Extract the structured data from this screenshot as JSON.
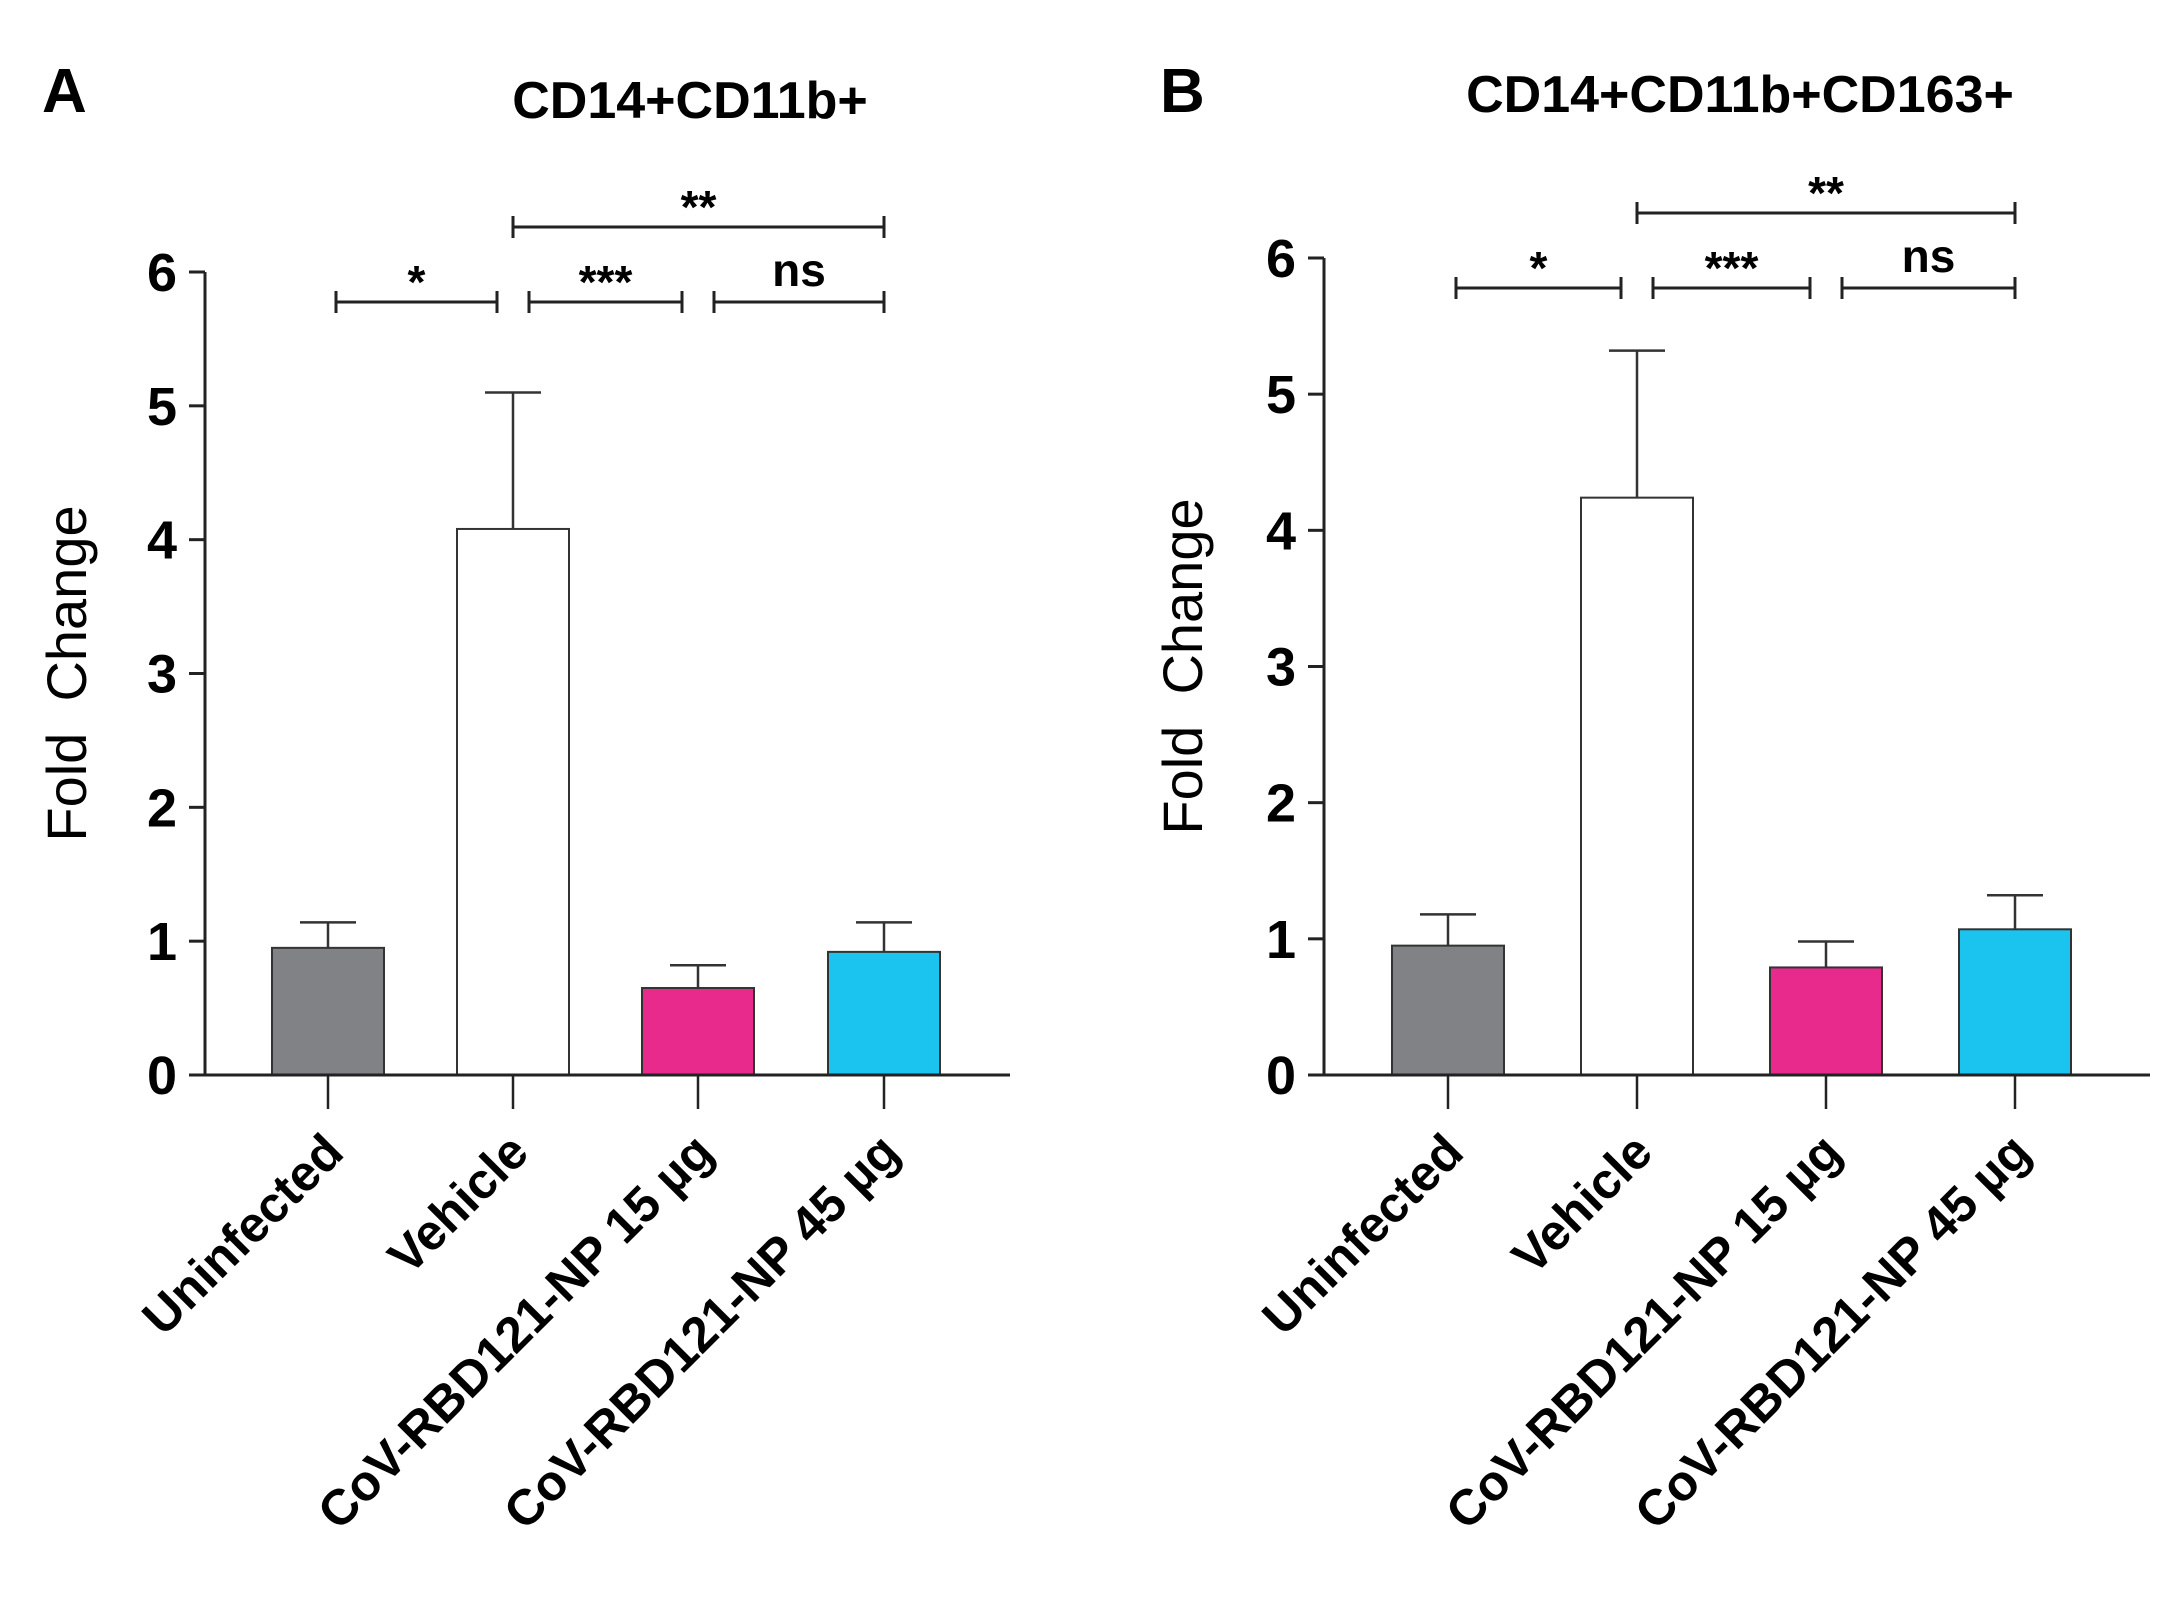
{
  "chart_data": [
    {
      "type": "bar",
      "panel": "A",
      "title": "CD14+CD11b+",
      "xlabel": "",
      "ylabel": "Fold  Change",
      "ylim": [
        0,
        6
      ],
      "yticks": [
        0,
        1,
        2,
        3,
        4,
        5,
        6
      ],
      "categories": [
        "Uninfected",
        "Vehicle",
        "CoV-RBD121-NP 15 µg",
        "CoV-RBD121-NP 45 µg"
      ],
      "values": [
        0.95,
        4.08,
        0.65,
        0.92
      ],
      "errors": [
        0.19,
        1.02,
        0.17,
        0.22
      ],
      "colors": [
        "#808285",
        "#ffffff",
        "#e82a8c",
        "#1ac4ef"
      ],
      "significance": [
        {
          "from": 0,
          "to": 1,
          "label": "*",
          "level": 1
        },
        {
          "from": 1,
          "to": 2,
          "label": "***",
          "level": 1
        },
        {
          "from": 2,
          "to": 3,
          "label": "ns",
          "level": 1
        },
        {
          "from": 1,
          "to": 3,
          "label": "**",
          "level": 2
        }
      ]
    },
    {
      "type": "bar",
      "panel": "B",
      "title": "CD14+CD11b+CD163+",
      "xlabel": "",
      "ylabel": "Fold  Change",
      "ylim": [
        0,
        6
      ],
      "yticks": [
        0,
        1,
        2,
        3,
        4,
        5,
        6
      ],
      "categories": [
        "Uninfected",
        "Vehicle",
        "CoV-RBD121-NP 15 µg",
        "CoV-RBD121-NP 45 µg"
      ],
      "values": [
        0.95,
        4.24,
        0.79,
        1.07
      ],
      "errors": [
        0.23,
        1.08,
        0.19,
        0.25
      ],
      "colors": [
        "#808285",
        "#ffffff",
        "#e82a8c",
        "#1ac4ef"
      ],
      "significance": [
        {
          "from": 0,
          "to": 1,
          "label": "*",
          "level": 1
        },
        {
          "from": 1,
          "to": 2,
          "label": "***",
          "level": 1
        },
        {
          "from": 2,
          "to": 3,
          "label": "ns",
          "level": 1
        },
        {
          "from": 1,
          "to": 3,
          "label": "**",
          "level": 2
        }
      ]
    }
  ]
}
